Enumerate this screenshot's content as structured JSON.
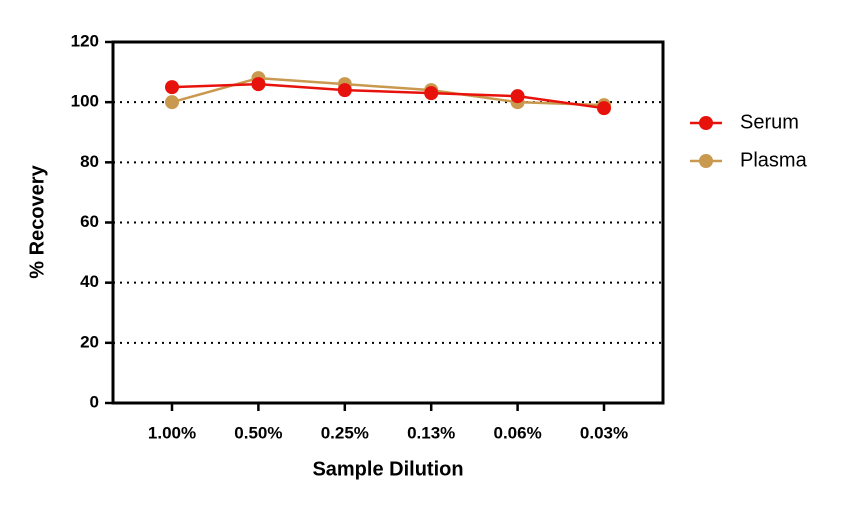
{
  "chart_data": {
    "type": "line",
    "x_label": "Sample Dilution",
    "y_label": "% Recovery",
    "categories": [
      "1.00%",
      "0.50%",
      "0.25%",
      "0.13%",
      "0.06%",
      "0.03%"
    ],
    "series": [
      {
        "name": "Serum",
        "color": "#e8120c",
        "values": [
          105,
          106,
          104,
          103,
          102,
          98
        ]
      },
      {
        "name": "Plasma",
        "color": "#c8994f",
        "values": [
          100,
          108,
          106,
          104,
          100,
          99
        ]
      }
    ],
    "ylim": [
      0,
      120
    ],
    "yticks": [
      0,
      20,
      40,
      60,
      80,
      100,
      120
    ],
    "grid": true,
    "legend": "right"
  }
}
